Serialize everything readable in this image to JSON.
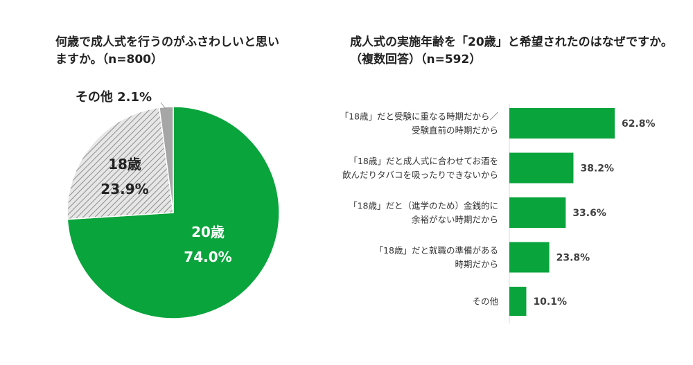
{
  "chart_data": [
    {
      "type": "pie",
      "title": "何歳で成人式を行うのがふさわしいと思いますか。（n=800）",
      "slices": [
        {
          "label": "20歳",
          "value": 74.0,
          "value_label": "74.0%",
          "color": "#0aa43c",
          "pattern": "solid"
        },
        {
          "label": "18歳",
          "value": 23.9,
          "value_label": "23.9%",
          "color": "#d7d7d7",
          "pattern": "hatched"
        },
        {
          "label": "その他",
          "value": 2.1,
          "value_label": "2.1%",
          "color": "#a6a6a6",
          "pattern": "solid"
        }
      ]
    },
    {
      "type": "bar",
      "orientation": "horizontal",
      "title": "成人式の実施年齢を「20歳」と希望されたのはなぜですか。（複数回答）（n=592）",
      "categories": [
        [
          "「18歳」だと受験に重なる時期だから／",
          "受験直前の時期だから"
        ],
        [
          "「18歳」だと成人式に合わせてお酒を",
          "飲んだりタバコを吸ったりできないから"
        ],
        [
          "「18歳」だと（進学のため）金銭的に",
          "余裕がない時期だから"
        ],
        [
          "「18歳」だと就職の準備がある",
          "時期だから"
        ],
        [
          "その他"
        ]
      ],
      "values": [
        62.8,
        38.2,
        33.6,
        23.8,
        10.1
      ],
      "value_labels": [
        "62.8%",
        "38.2%",
        "33.6%",
        "23.8%",
        "10.1%"
      ],
      "color": "#0aa43c"
    }
  ]
}
